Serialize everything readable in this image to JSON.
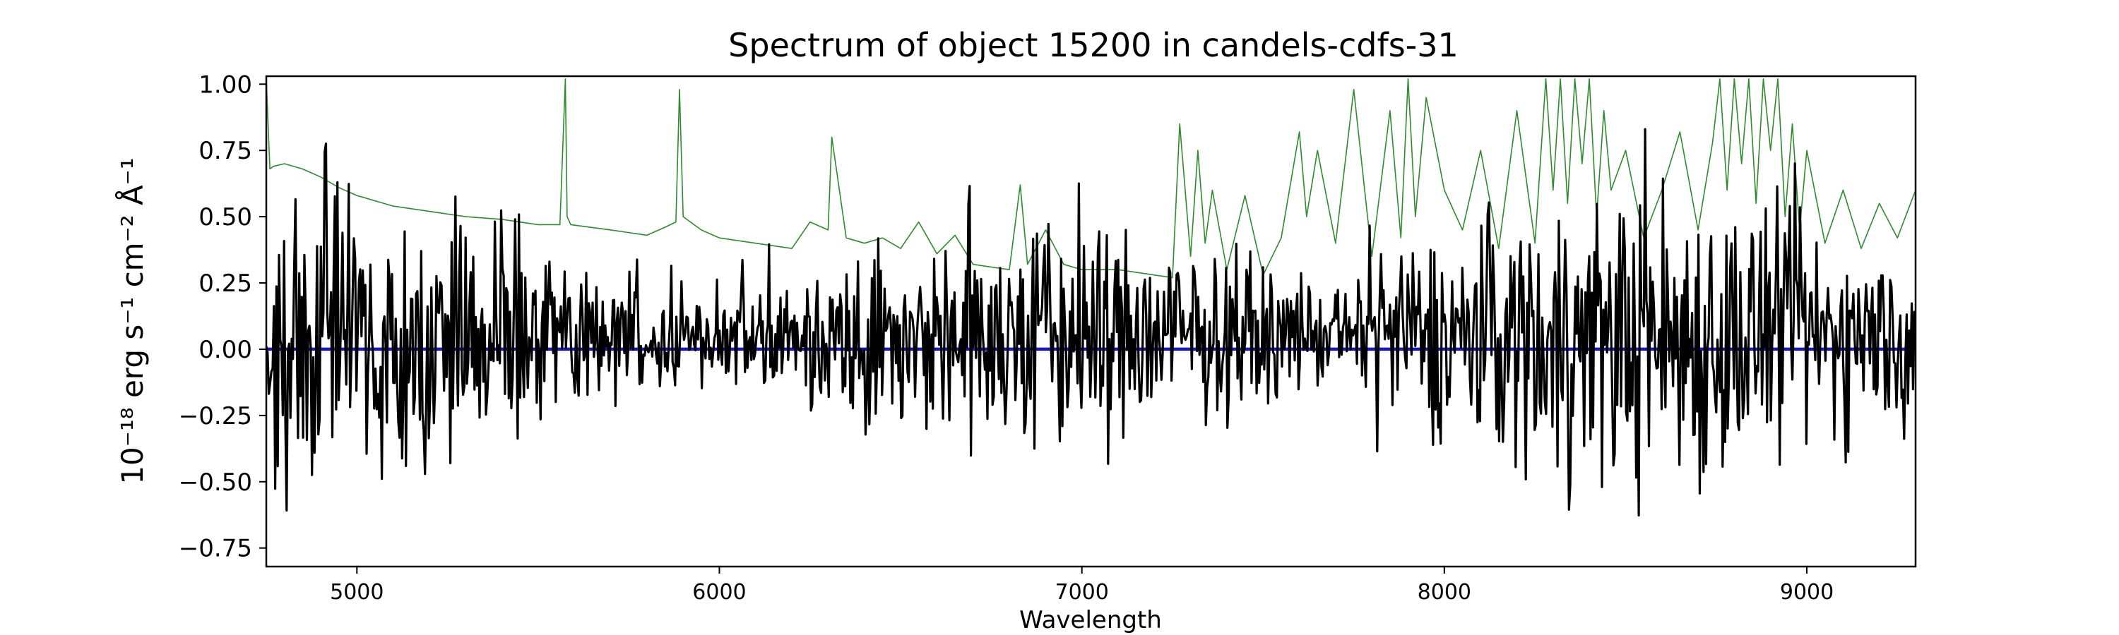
{
  "chart_data": {
    "type": "line",
    "title": "Spectrum of object 15200 in candels-cdfs-31",
    "xlabel": "Wavelength",
    "ylabel": "10⁻¹⁸ erg s⁻¹ cm⁻² Å⁻¹",
    "xlim": [
      4750,
      9300
    ],
    "ylim": [
      -0.82,
      1.03
    ],
    "x_ticks": [
      5000,
      6000,
      7000,
      8000,
      9000
    ],
    "x_tick_labels": [
      "5000",
      "6000",
      "7000",
      "8000",
      "9000"
    ],
    "y_ticks": [
      -0.75,
      -0.5,
      -0.25,
      0.0,
      0.25,
      0.5,
      0.75,
      1.0
    ],
    "y_tick_labels": [
      "−0.75",
      "−0.50",
      "−0.25",
      "0.00",
      "0.25",
      "0.50",
      "0.75",
      "1.00"
    ],
    "grid": false,
    "series": [
      {
        "key": "sky",
        "color": "#2e8b2e",
        "x": [
          4750,
          4760,
          4770,
          4800,
          4850,
          4900,
          4950,
          5000,
          5100,
          5200,
          5300,
          5400,
          5500,
          5560,
          5575,
          5580,
          5590,
          5700,
          5800,
          5850,
          5880,
          5890,
          5900,
          5950,
          6000,
          6100,
          6200,
          6250,
          6300,
          6310,
          6350,
          6400,
          6450,
          6500,
          6550,
          6600,
          6650,
          6700,
          6800,
          6830,
          6850,
          6900,
          6950,
          7000,
          7100,
          7200,
          7250,
          7270,
          7300,
          7320,
          7340,
          7360,
          7400,
          7450,
          7500,
          7550,
          7600,
          7620,
          7650,
          7700,
          7750,
          7800,
          7850,
          7880,
          7900,
          7920,
          7950,
          8000,
          8050,
          8100,
          8150,
          8200,
          8250,
          8280,
          8300,
          8320,
          8340,
          8360,
          8380,
          8400,
          8420,
          8440,
          8460,
          8500,
          8550,
          8600,
          8650,
          8700,
          8740,
          8760,
          8780,
          8800,
          8820,
          8840,
          8860,
          8880,
          8900,
          8920,
          8940,
          8960,
          8980,
          9000,
          9050,
          9100,
          9150,
          9200,
          9250,
          9300
        ],
        "y": [
          1.02,
          0.68,
          0.69,
          0.7,
          0.68,
          0.65,
          0.61,
          0.58,
          0.54,
          0.52,
          0.5,
          0.49,
          0.47,
          0.47,
          1.02,
          0.5,
          0.47,
          0.45,
          0.43,
          0.46,
          0.48,
          0.98,
          0.5,
          0.45,
          0.42,
          0.4,
          0.38,
          0.48,
          0.45,
          0.8,
          0.42,
          0.4,
          0.42,
          0.38,
          0.48,
          0.36,
          0.43,
          0.32,
          0.3,
          0.62,
          0.32,
          0.45,
          0.32,
          0.3,
          0.3,
          0.28,
          0.27,
          0.85,
          0.35,
          0.75,
          0.4,
          0.6,
          0.3,
          0.58,
          0.28,
          0.42,
          0.82,
          0.5,
          0.75,
          0.4,
          0.98,
          0.35,
          0.9,
          0.42,
          1.02,
          0.5,
          0.95,
          0.6,
          0.45,
          0.75,
          0.38,
          0.9,
          0.4,
          1.02,
          0.6,
          1.02,
          0.55,
          1.02,
          0.7,
          1.02,
          0.5,
          0.9,
          0.6,
          0.75,
          0.42,
          0.6,
          0.82,
          0.45,
          0.78,
          1.02,
          0.6,
          1.02,
          0.7,
          1.02,
          0.55,
          1.02,
          0.75,
          1.02,
          0.5,
          0.85,
          0.45,
          0.75,
          0.4,
          0.6,
          0.38,
          0.55,
          0.42,
          0.6
        ]
      },
      {
        "key": "model",
        "color": "#1414c8",
        "x": [
          4750,
          9300
        ],
        "y": [
          0.0,
          0.0
        ]
      }
    ]
  }
}
